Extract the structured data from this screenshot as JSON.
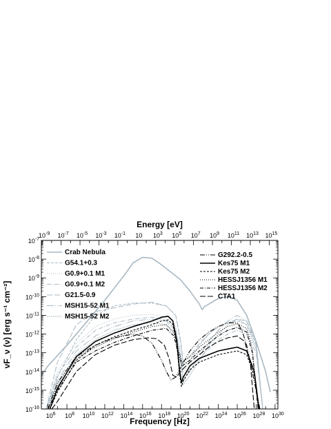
{
  "chart_data": {
    "type": "line",
    "xlabel": "Frequency [Hz]",
    "ylabel": "νF_ν (ν) [erg s⁻¹ cm⁻²]",
    "top_axis_label": "Energy [eV]",
    "x_log_range": [
      5.3,
      30.3
    ],
    "y_log_range": [
      -16,
      -7
    ],
    "scale": "log-log",
    "x_ticks": [
      {
        "exp": 6,
        "label": "10^6"
      },
      {
        "exp": 8,
        "label": "10^8"
      },
      {
        "exp": 10,
        "label": "10^10"
      },
      {
        "exp": 12,
        "label": "10^12"
      },
      {
        "exp": 14,
        "label": "10^14"
      },
      {
        "exp": 16,
        "label": "10^16"
      },
      {
        "exp": 18,
        "label": "10^18"
      },
      {
        "exp": 20,
        "label": "10^20"
      },
      {
        "exp": 22,
        "label": "10^22"
      },
      {
        "exp": 24,
        "label": "10^24"
      },
      {
        "exp": 26,
        "label": "10^26"
      },
      {
        "exp": 28,
        "label": "10^28"
      },
      {
        "exp": 30,
        "label": "10^30"
      }
    ],
    "top_ticks": [
      {
        "exp": -9,
        "label": "10^-9"
      },
      {
        "exp": -7,
        "label": "10^-7"
      },
      {
        "exp": -5,
        "label": "10^-5"
      },
      {
        "exp": -3,
        "label": "10^-3"
      },
      {
        "exp": -1,
        "label": "10^-1"
      },
      {
        "exp": 1,
        "label": "10"
      },
      {
        "exp": 3,
        "label": "10^3"
      },
      {
        "exp": 5,
        "label": "10^5"
      },
      {
        "exp": 7,
        "label": "10^7"
      },
      {
        "exp": 9,
        "label": "10^9"
      },
      {
        "exp": 11,
        "label": "10^11"
      },
      {
        "exp": 13,
        "label": "10^13"
      },
      {
        "exp": 15,
        "label": "10^15"
      }
    ],
    "y_ticks": [
      {
        "exp": -7,
        "label": "10^-7"
      },
      {
        "exp": -8,
        "label": "10^-8"
      },
      {
        "exp": -9,
        "label": "10^-9"
      },
      {
        "exp": -10,
        "label": "10^-10"
      },
      {
        "exp": -11,
        "label": "10^-11"
      },
      {
        "exp": -12,
        "label": "10^-12"
      },
      {
        "exp": -13,
        "label": "10^-13"
      },
      {
        "exp": -14,
        "label": "10^-14"
      },
      {
        "exp": -15,
        "label": "10^-15"
      },
      {
        "exp": -16,
        "label": "10^-16"
      }
    ],
    "series": [
      {
        "name": "Crab Nebula",
        "color": "#a9b8c2",
        "width": 1.6,
        "dash": "",
        "legend": "left",
        "x": [
          5.3,
          6,
          8,
          10,
          12,
          14,
          15,
          16,
          17,
          18,
          19,
          20,
          21,
          22,
          22.3,
          22.5,
          23,
          24,
          25,
          26,
          27,
          28,
          29,
          29.5
        ],
        "y": [
          -14.2,
          -13.7,
          -12.6,
          -11.4,
          -10.2,
          -8.9,
          -8.2,
          -7.9,
          -7.95,
          -8.3,
          -8.7,
          -9.1,
          -9.7,
          -10.4,
          -10.7,
          -10.55,
          -10.4,
          -10.1,
          -10.0,
          -10.2,
          -11.0,
          -12.4,
          -14.0,
          -15.1
        ]
      },
      {
        "name": "G54.1+0.3",
        "color": "#a9b8c2",
        "width": 1.0,
        "dash": "4,2",
        "legend": "left",
        "x": [
          5.8,
          7,
          9,
          11,
          13,
          15,
          17,
          18.5,
          19.5,
          20.0,
          20.3,
          21,
          22,
          23,
          24,
          25,
          26,
          27,
          28,
          28.7
        ],
        "y": [
          -16,
          -14.3,
          -12.3,
          -11.0,
          -10.5,
          -10.35,
          -10.35,
          -10.5,
          -11.0,
          -12.4,
          -13.6,
          -13.4,
          -12.6,
          -12.0,
          -11.6,
          -11.4,
          -11.3,
          -11.5,
          -12.5,
          -16
        ]
      },
      {
        "name": "G0.9+0.1 M1",
        "color": "#a9b8c2",
        "width": 1.0,
        "dash": "1,2",
        "legend": "left",
        "x": [
          5.8,
          7,
          9,
          11,
          13,
          15,
          17,
          18.5,
          19.5,
          20.0,
          20.3,
          21,
          22,
          23,
          24,
          25,
          26,
          27,
          28,
          28.7
        ],
        "y": [
          -16,
          -14.0,
          -12.5,
          -11.6,
          -11.2,
          -11.0,
          -10.95,
          -11.1,
          -11.6,
          -12.9,
          -14.0,
          -13.6,
          -13.0,
          -12.5,
          -12.0,
          -11.8,
          -11.6,
          -11.8,
          -12.8,
          -16
        ]
      },
      {
        "name": "G0.9+0.1 M2",
        "color": "#a9b8c2",
        "width": 1.0,
        "dash": "6,2,1,2",
        "legend": "left",
        "x": [
          5.8,
          7,
          9,
          11,
          13,
          15,
          17,
          18.5,
          19.5,
          20.0,
          20.3,
          21,
          22,
          23,
          24,
          25,
          26,
          27,
          28,
          28.7
        ],
        "y": [
          -16,
          -14.2,
          -12.7,
          -11.8,
          -11.4,
          -11.2,
          -11.1,
          -11.25,
          -11.8,
          -13.1,
          -14.3,
          -13.9,
          -13.3,
          -12.8,
          -12.3,
          -12.0,
          -11.8,
          -12.0,
          -13.0,
          -16
        ]
      },
      {
        "name": "G21.5-0.9",
        "color": "#a9b8c2",
        "width": 1.0,
        "dash": "8,3",
        "legend": "left",
        "x": [
          5.8,
          7,
          9,
          11,
          13,
          15,
          17,
          18.5,
          19.5,
          20.0,
          20.3,
          21,
          22,
          23,
          24,
          25,
          26,
          27,
          28,
          28.7
        ],
        "y": [
          -16,
          -13.5,
          -11.5,
          -10.8,
          -10.6,
          -10.4,
          -10.3,
          -10.5,
          -11.0,
          -12.3,
          -13.5,
          -13.2,
          -12.5,
          -12.0,
          -11.6,
          -11.4,
          -11.2,
          -11.3,
          -12.4,
          -16
        ]
      },
      {
        "name": "MSH15-52 M1",
        "color": "#a9b8c2",
        "width": 1.0,
        "dash": "10,2,1,2,1,2",
        "legend": "left",
        "x": [
          5.8,
          7,
          9,
          11,
          13,
          15,
          17,
          18.5,
          19.5,
          20.0,
          20.3,
          21,
          22,
          23,
          24,
          25,
          26,
          27,
          28,
          28.7
        ],
        "y": [
          -16,
          -14.5,
          -12.9,
          -12.1,
          -11.6,
          -11.3,
          -11.2,
          -11.3,
          -11.9,
          -13.3,
          -14.5,
          -14.0,
          -13.2,
          -12.4,
          -11.8,
          -11.3,
          -11.0,
          -11.3,
          -12.6,
          -16
        ]
      },
      {
        "name": "MSH15-52 M2",
        "color": "#a9b8c2",
        "width": 1.0,
        "dash": "2,1",
        "legend": "left",
        "x": [
          5.8,
          7,
          9,
          11,
          13,
          15,
          17,
          18.5,
          19.5,
          20.0,
          20.3,
          21,
          22,
          23,
          24,
          25,
          26,
          27,
          28,
          28.7
        ],
        "y": [
          -16,
          -14.7,
          -13.1,
          -12.3,
          -11.8,
          -11.5,
          -11.4,
          -11.5,
          -12.1,
          -13.5,
          -14.7,
          -14.2,
          -13.4,
          -12.6,
          -12.0,
          -11.5,
          -11.2,
          -11.5,
          -12.8,
          -16
        ]
      },
      {
        "name": "G292.2-0.5",
        "color": "#000000",
        "width": 1.1,
        "dash": "7,2,1,2,1,2",
        "legend": "right",
        "x": [
          6.0,
          7,
          9,
          11,
          13,
          15,
          16,
          17,
          18,
          18.5,
          19,
          19.5,
          20,
          21,
          22,
          23,
          24,
          25,
          26,
          26.5,
          27,
          27.5,
          28,
          28.4
        ],
        "y": [
          -16,
          -14.6,
          -13.2,
          -12.6,
          -12.2,
          -12.0,
          -12.1,
          -12.5,
          -13.4,
          -14.0,
          -14.45,
          -14.3,
          -13.8,
          -12.9,
          -12.3,
          -11.9,
          -11.6,
          -11.4,
          -11.4,
          -11.8,
          -12.6,
          -13.8,
          -15.0,
          -16
        ]
      },
      {
        "name": "Kes75 M1",
        "color": "#000000",
        "width": 1.6,
        "dash": "",
        "legend": "right",
        "x": [
          6.2,
          7,
          9,
          11,
          13,
          15,
          17,
          18,
          18.7,
          19.2,
          19.6,
          19.9,
          20.1,
          20.3,
          21,
          22,
          23,
          24,
          25,
          26,
          27,
          27.8,
          28.3
        ],
        "y": [
          -16,
          -14.9,
          -13.2,
          -12.4,
          -11.95,
          -11.6,
          -11.3,
          -11.1,
          -11.05,
          -11.3,
          -12.3,
          -13.9,
          -14.6,
          -14.3,
          -13.7,
          -13.3,
          -13.1,
          -12.9,
          -12.8,
          -12.7,
          -12.9,
          -14.0,
          -16
        ]
      },
      {
        "name": "Kes75 M2",
        "color": "#000000",
        "width": 1.1,
        "dash": "3,2",
        "legend": "right",
        "x": [
          6.2,
          7,
          9,
          11,
          13,
          15,
          17,
          18,
          18.7,
          19.2,
          19.6,
          19.9,
          20.1,
          20.3,
          21,
          22,
          23,
          24,
          25,
          26,
          27,
          27.8,
          28.3
        ],
        "y": [
          -16,
          -15.1,
          -13.4,
          -12.6,
          -12.15,
          -11.8,
          -11.5,
          -11.3,
          -11.25,
          -11.5,
          -12.5,
          -14.1,
          -14.8,
          -14.5,
          -13.9,
          -13.5,
          -13.3,
          -13.1,
          -13.0,
          -12.9,
          -13.1,
          -14.2,
          -16
        ]
      },
      {
        "name": "HESSJ1356 M1",
        "color": "#000000",
        "width": 1.1,
        "dash": "1,2",
        "legend": "right",
        "x": [
          6.0,
          7,
          9,
          11,
          13,
          15,
          17,
          18.5,
          19.3,
          19.8,
          20.2,
          21,
          22,
          23,
          24,
          25,
          26,
          27,
          27.6,
          28.2
        ],
        "y": [
          -16,
          -14.8,
          -13.3,
          -12.7,
          -12.25,
          -11.9,
          -11.6,
          -11.5,
          -11.9,
          -12.9,
          -13.5,
          -13.2,
          -12.7,
          -12.3,
          -11.9,
          -11.6,
          -11.45,
          -11.7,
          -12.8,
          -16
        ]
      },
      {
        "name": "HESSJ1356 M2",
        "color": "#000000",
        "width": 1.1,
        "dash": "5,2,1,2",
        "legend": "right",
        "x": [
          6.0,
          7,
          9,
          11,
          13,
          15,
          17,
          18.5,
          19.3,
          19.8,
          20.2,
          21,
          22,
          23,
          24,
          25,
          26,
          27,
          27.6,
          28.2
        ],
        "y": [
          -16,
          -15.0,
          -13.5,
          -12.9,
          -12.45,
          -12.1,
          -11.8,
          -11.7,
          -12.1,
          -13.1,
          -13.7,
          -13.4,
          -12.9,
          -12.5,
          -12.1,
          -11.8,
          -11.65,
          -11.9,
          -13.0,
          -16
        ]
      },
      {
        "name": "CTA1",
        "color": "#000000",
        "width": 1.1,
        "dash": "8,3",
        "legend": "right",
        "x": [
          6.4,
          7,
          9,
          11,
          13,
          15,
          16.5,
          17.5,
          18.3,
          18.8,
          19.2,
          19.6,
          20.0,
          21,
          22,
          23,
          24,
          25,
          26,
          26.8,
          27.4,
          27.8
        ],
        "y": [
          -16,
          -15.6,
          -14.0,
          -13.1,
          -12.6,
          -12.3,
          -12.2,
          -12.25,
          -12.6,
          -13.3,
          -14.2,
          -14.3,
          -14.0,
          -13.5,
          -13.1,
          -12.7,
          -12.4,
          -12.2,
          -12.1,
          -12.4,
          -13.6,
          -16
        ]
      }
    ]
  }
}
